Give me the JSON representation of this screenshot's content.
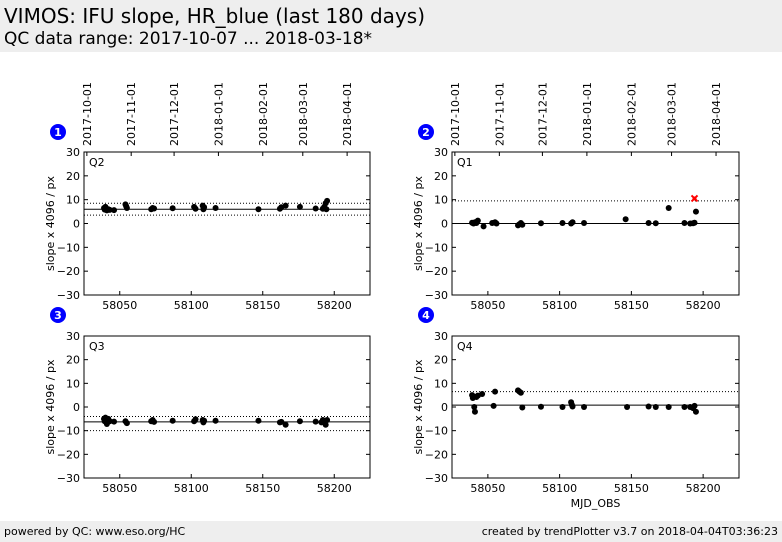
{
  "header": {
    "title": "VIMOS: IFU slope, HR_blue (last 180 days)",
    "subtitle": "QC data range: 2017-10-07 ... 2018-03-18*"
  },
  "footer": {
    "left": "powered by QC: www.eso.org/HC",
    "right": "created by trendPlotter v3.7 on 2018-04-04T03:36:23"
  },
  "colors": {
    "points": "#000000",
    "outlier": "#ff0000",
    "badge": "#0000ff",
    "background": "#ffffff"
  },
  "chart_data": [
    {
      "type": "scatter",
      "badge": "1",
      "label": "Q2",
      "xlabel": "",
      "ylabel": "slope x 4096 / px",
      "xlim": [
        58025,
        58225
      ],
      "ylim": [
        -30,
        30
      ],
      "xticks": [
        58050,
        58100,
        58150,
        58200
      ],
      "yticks": [
        -30,
        -20,
        -10,
        0,
        10,
        20,
        30
      ],
      "top_dates": [
        "2017-10-01",
        "2017-11-01",
        "2017-12-01",
        "2018-01-01",
        "2018-02-01",
        "2018-03-01",
        "2018-04-01"
      ],
      "top_date_mjd": [
        58027,
        58058,
        58088,
        58119,
        58150,
        58178,
        58209
      ],
      "hlines": [
        {
          "y": 6,
          "style": "solid"
        },
        {
          "y": 8.5,
          "style": "dotted"
        },
        {
          "y": 3.5,
          "style": "dotted"
        }
      ],
      "points": [
        [
          58039,
          6.5
        ],
        [
          58039.5,
          5.8
        ],
        [
          58040,
          7.0
        ],
        [
          58040.5,
          6.2
        ],
        [
          58041,
          5.5
        ],
        [
          58042,
          6.0
        ],
        [
          58043,
          5.7
        ],
        [
          58046,
          5.6
        ],
        [
          58054,
          8.0
        ],
        [
          58054.5,
          7.3
        ],
        [
          58055,
          6.5
        ],
        [
          58072,
          6.0
        ],
        [
          58073,
          6.5
        ],
        [
          58074,
          6.3
        ],
        [
          58087,
          6.4
        ],
        [
          58102,
          7.0
        ],
        [
          58103,
          6.2
        ],
        [
          58108,
          7.5
        ],
        [
          58108.5,
          6.0
        ],
        [
          58109,
          6.8
        ],
        [
          58117,
          6.5
        ],
        [
          58147,
          6.0
        ],
        [
          58162,
          6.2
        ],
        [
          58163,
          6.8
        ],
        [
          58166,
          7.5
        ],
        [
          58176,
          7.0
        ],
        [
          58187,
          6.3
        ],
        [
          58192,
          6.2
        ],
        [
          58193,
          7.0
        ],
        [
          58194,
          8.5
        ],
        [
          58194.5,
          6.0
        ],
        [
          58195,
          9.5
        ]
      ],
      "outliers": []
    },
    {
      "type": "scatter",
      "badge": "2",
      "label": "Q1",
      "xlabel": "",
      "ylabel": "slope x 4096 / px",
      "xlim": [
        58025,
        58225
      ],
      "ylim": [
        -30,
        30
      ],
      "xticks": [
        58050,
        58100,
        58150,
        58200
      ],
      "yticks": [
        -30,
        -20,
        -10,
        0,
        10,
        20,
        30
      ],
      "top_dates": [
        "2017-10-01",
        "2017-11-01",
        "2017-12-01",
        "2018-01-01",
        "2018-02-01",
        "2018-03-01",
        "2018-04-01"
      ],
      "top_date_mjd": [
        58027,
        58058,
        58088,
        58119,
        58150,
        58178,
        58209
      ],
      "hlines": [
        {
          "y": 0,
          "style": "solid"
        },
        {
          "y": 9.5,
          "style": "dotted"
        }
      ],
      "points": [
        [
          58039,
          0.3
        ],
        [
          58040,
          0.0
        ],
        [
          58041,
          0.5
        ],
        [
          58042,
          0.2
        ],
        [
          58043,
          1.2
        ],
        [
          58047,
          -1.2
        ],
        [
          58053,
          0.2
        ],
        [
          58055,
          0.5
        ],
        [
          58056,
          0.0
        ],
        [
          58071,
          -0.8
        ],
        [
          58072,
          -0.3
        ],
        [
          58073,
          0.2
        ],
        [
          58074,
          -0.5
        ],
        [
          58087,
          0.1
        ],
        [
          58102,
          0.2
        ],
        [
          58108,
          0.0
        ],
        [
          58109,
          0.5
        ],
        [
          58117,
          0.2
        ],
        [
          58146,
          1.8
        ],
        [
          58162,
          0.2
        ],
        [
          58167,
          0.1
        ],
        [
          58176,
          6.5
        ],
        [
          58187,
          0.2
        ],
        [
          58191,
          0.0
        ],
        [
          58193,
          0.1
        ],
        [
          58194,
          0.3
        ],
        [
          58195,
          5.0
        ]
      ],
      "outliers": [
        [
          58194,
          10.5
        ]
      ]
    },
    {
      "type": "scatter",
      "badge": "3",
      "label": "Q3",
      "xlabel": "",
      "ylabel": "slope x 4096 / px",
      "xlim": [
        58025,
        58225
      ],
      "ylim": [
        -30,
        30
      ],
      "xticks": [
        58050,
        58100,
        58150,
        58200
      ],
      "yticks": [
        -30,
        -20,
        -10,
        0,
        10,
        20,
        30
      ],
      "top_dates": [],
      "top_date_mjd": [],
      "hlines": [
        {
          "y": -6.3,
          "style": "solid"
        },
        {
          "y": -4.0,
          "style": "dotted"
        },
        {
          "y": -10.0,
          "style": "dotted"
        }
      ],
      "points": [
        [
          58039,
          -5.0
        ],
        [
          58039.5,
          -6.0
        ],
        [
          58040,
          -4.5
        ],
        [
          58040.5,
          -5.5
        ],
        [
          58041,
          -7.2
        ],
        [
          58042,
          -5.0
        ],
        [
          58043,
          -6.0
        ],
        [
          58046,
          -6.2
        ],
        [
          58054,
          -6.0
        ],
        [
          58055,
          -6.8
        ],
        [
          58072,
          -6.0
        ],
        [
          58073,
          -5.5
        ],
        [
          58074,
          -6.3
        ],
        [
          58087,
          -5.8
        ],
        [
          58102,
          -6.0
        ],
        [
          58103,
          -5.2
        ],
        [
          58108,
          -5.5
        ],
        [
          58108.5,
          -6.5
        ],
        [
          58109,
          -5.8
        ],
        [
          58117,
          -5.8
        ],
        [
          58147,
          -5.8
        ],
        [
          58162,
          -6.5
        ],
        [
          58163,
          -6.3
        ],
        [
          58166,
          -7.5
        ],
        [
          58176,
          -6.0
        ],
        [
          58187,
          -6.2
        ],
        [
          58191,
          -6.5
        ],
        [
          58192,
          -5.5
        ],
        [
          58193,
          -6.0
        ],
        [
          58194,
          -7.5
        ],
        [
          58195,
          -5.5
        ]
      ],
      "outliers": []
    },
    {
      "type": "scatter",
      "badge": "4",
      "label": "Q4",
      "xlabel": "MJD_OBS",
      "ylabel": "slope x 4096 / px",
      "xlim": [
        58025,
        58225
      ],
      "ylim": [
        -30,
        30
      ],
      "xticks": [
        58050,
        58100,
        58150,
        58200
      ],
      "yticks": [
        -30,
        -20,
        -10,
        0,
        10,
        20,
        30
      ],
      "top_dates": [],
      "top_date_mjd": [],
      "hlines": [
        {
          "y": 0.8,
          "style": "solid"
        },
        {
          "y": 6.5,
          "style": "dotted"
        }
      ],
      "points": [
        [
          58039,
          5.0
        ],
        [
          58039.5,
          3.8
        ],
        [
          58040,
          4.5
        ],
        [
          58040.5,
          0.0
        ],
        [
          58041,
          -2.0
        ],
        [
          58042,
          4.2
        ],
        [
          58043,
          4.8
        ],
        [
          58046,
          5.5
        ],
        [
          58054,
          0.5
        ],
        [
          58055,
          6.5
        ],
        [
          58071,
          7.0
        ],
        [
          58072,
          6.5
        ],
        [
          58073,
          6.0
        ],
        [
          58074,
          -0.2
        ],
        [
          58087,
          0.1
        ],
        [
          58102,
          0.0
        ],
        [
          58108,
          2.0
        ],
        [
          58108.5,
          1.0
        ],
        [
          58109,
          0.2
        ],
        [
          58117,
          0.0
        ],
        [
          58147,
          0.0
        ],
        [
          58162,
          0.2
        ],
        [
          58167,
          0.0
        ],
        [
          58176,
          0.0
        ],
        [
          58187,
          0.0
        ],
        [
          58191,
          0.0
        ],
        [
          58193,
          -0.5
        ],
        [
          58194,
          0.5
        ],
        [
          58195,
          -2.0
        ]
      ],
      "outliers": []
    }
  ]
}
